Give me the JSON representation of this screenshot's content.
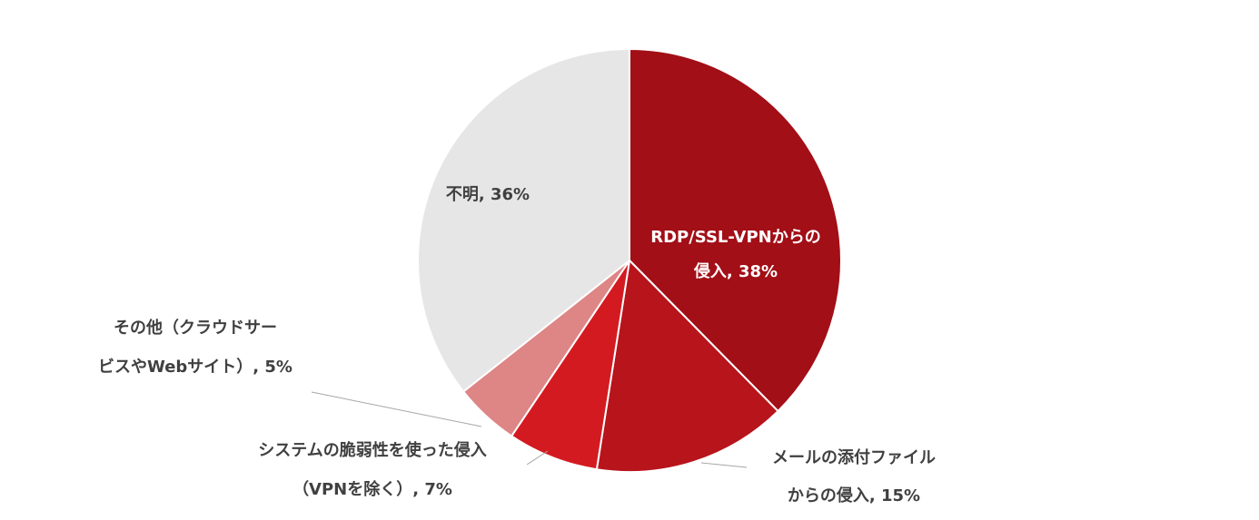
{
  "chart_data": {
    "type": "pie",
    "values": [
      38,
      15,
      7,
      5,
      36
    ],
    "value_labels": [
      [
        "RDP/SSL-VPNからの",
        "侵入, 38%"
      ],
      [
        "メールの添付ファイル",
        "からの侵入, 15%"
      ],
      [
        "システムの脆弱性を使った侵入",
        "（VPNを除く）, 7%"
      ],
      [
        "その他（クラウドサー",
        "ビスやWebサイト）, 5%"
      ],
      [
        "不明, 36%"
      ]
    ],
    "colors": [
      "#a20f17",
      "#b8141b",
      "#d41a21",
      "#de8585",
      "#e6e6e6"
    ]
  }
}
